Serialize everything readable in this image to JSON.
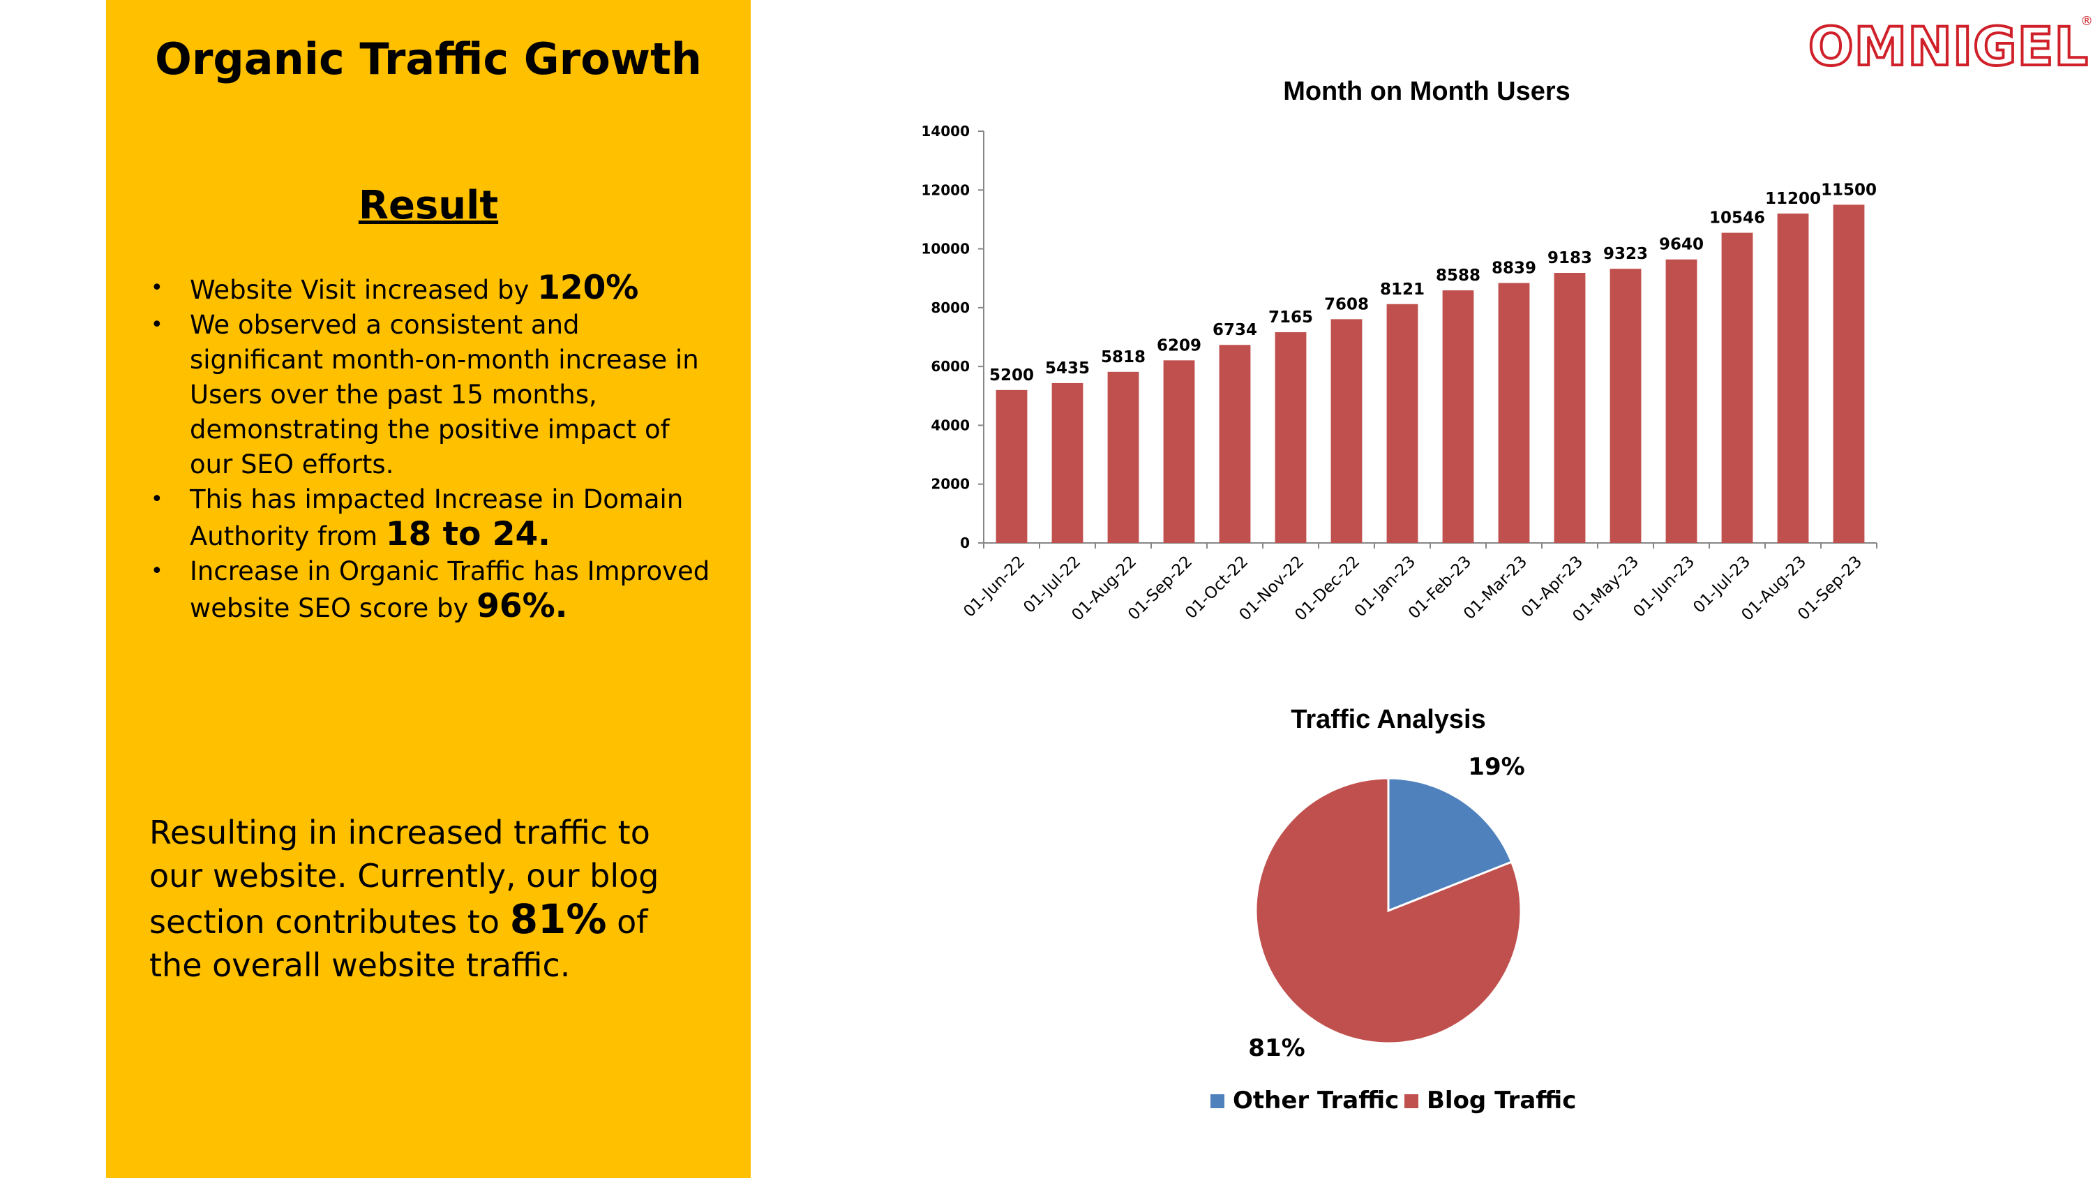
{
  "logo": {
    "text": "OMNIGEL",
    "registered": "®"
  },
  "left_panel": {
    "title": "Organic Traffic Growth",
    "result_heading": "Result",
    "bullets": [
      {
        "text": "Website  Visit increased by ",
        "highlight": "120%"
      },
      {
        "text": "We observed a consistent and significant month-on-month increase in Users over the past 15 months, demonstrating the positive impact of our SEO efforts.",
        "highlight": ""
      },
      {
        "text": "This has impacted Increase in Domain Authority from ",
        "highlight": "18 to 24."
      },
      {
        "text": "Increase in Organic Traffic has Improved website SEO score by ",
        "highlight": "96%."
      }
    ],
    "bullet_symbol": "•",
    "summary": {
      "before": "Resulting in increased traffic to our website. Currently, our blog section contributes to ",
      "highlight": "81%",
      "after": " of the overall website traffic."
    }
  },
  "chart_data": [
    {
      "type": "bar",
      "title": "Month on Month Users",
      "categories": [
        "01-Jun-22",
        "01-Jul-22",
        "01-Aug-22",
        "01-Sep-22",
        "01-Oct-22",
        "01-Nov-22",
        "01-Dec-22",
        "01-Jan-23",
        "01-Feb-23",
        "01-Mar-23",
        "01-Apr-23",
        "01-May-23",
        "01-Jun-23",
        "01-Jul-23",
        "01-Aug-23",
        "01-Sep-23"
      ],
      "values": [
        5200,
        5435,
        5818,
        6209,
        6734,
        7165,
        7608,
        8121,
        8588,
        8839,
        9183,
        9323,
        9640,
        10546,
        11200,
        11500
      ],
      "ylim": [
        0,
        14000
      ],
      "yticks": [
        0,
        2000,
        4000,
        6000,
        8000,
        10000,
        12000,
        14000
      ],
      "bar_color": "#C0504D",
      "grid": false,
      "data_labels": true
    },
    {
      "type": "pie",
      "title": "Traffic Analysis",
      "slices": [
        {
          "label": "Other Traffic",
          "value": 19,
          "display": "19%",
          "color": "#4F81BD"
        },
        {
          "label": "Blog Traffic",
          "value": 81,
          "display": "81%",
          "color": "#C0504D"
        }
      ],
      "legend": "bottom"
    }
  ]
}
